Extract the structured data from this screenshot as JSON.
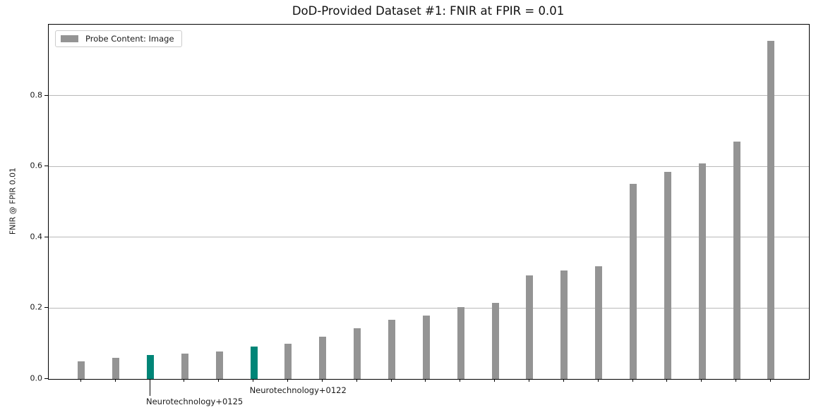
{
  "figure": {
    "title": "DoD-Provided Dataset #1: FNIR at FPIR = 0.01"
  },
  "chart_data": {
    "type": "bar",
    "title": "DoD-Provided Dataset #1: FNIR at FPIR = 0.01",
    "xlabel": "",
    "ylabel": "FNIR @ FPIR 0.01",
    "ylim": [
      0,
      1.0
    ],
    "yticks": [
      0.0,
      0.2,
      0.4,
      0.6,
      0.8
    ],
    "ytick_labels": [
      "0.0",
      "0.2",
      "0.4",
      "0.6",
      "0.8"
    ],
    "grid": "horizontal",
    "legend": {
      "label": "Probe Content: Image",
      "position": "upper-left"
    },
    "colors": {
      "bar": "#949494",
      "highlight": "#008577",
      "gridline": "#b9b9b9",
      "frame": "#000000"
    },
    "n_bars": 21,
    "values": [
      0.05,
      0.059,
      0.067,
      0.072,
      0.077,
      0.092,
      0.099,
      0.12,
      0.144,
      0.167,
      0.179,
      0.203,
      0.215,
      0.293,
      0.307,
      0.318,
      0.551,
      0.585,
      0.608,
      0.67,
      0.955
    ],
    "highlighted_indices": [
      2,
      5
    ],
    "annotations": [
      {
        "text": "Neurotechnology+0125",
        "bar_index": 2,
        "value": 0.067,
        "leader_line": true
      },
      {
        "text": "Neurotechnology+0122",
        "bar_index": 5,
        "value": 0.092,
        "leader_line": false
      }
    ]
  }
}
